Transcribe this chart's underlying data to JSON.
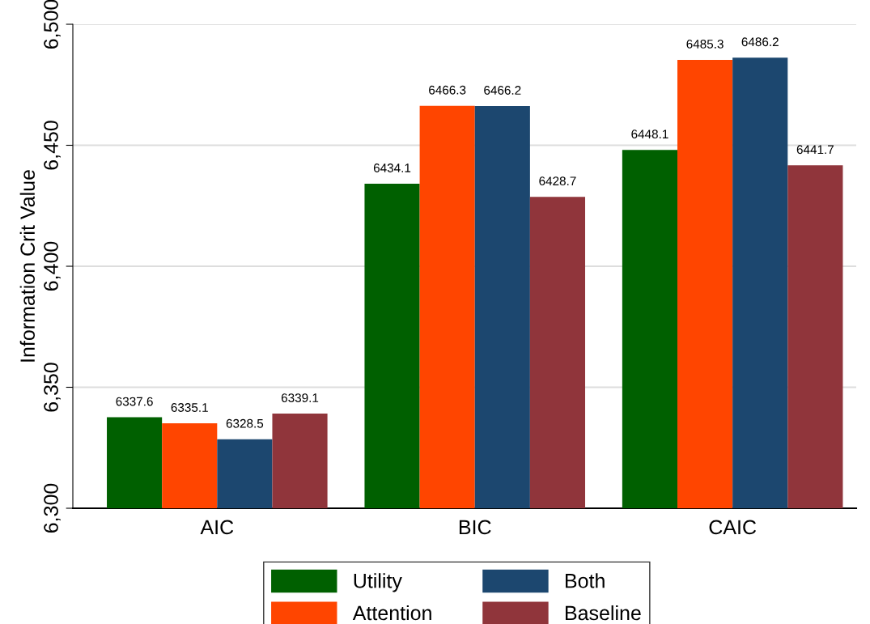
{
  "chart_data": {
    "type": "bar",
    "ylabel": "Information Crit Value",
    "categories": [
      "AIC",
      "BIC",
      "CAIC"
    ],
    "series": [
      {
        "name": "Utility",
        "color": "#006000",
        "values": [
          6337.6,
          6434.1,
          6448.1
        ]
      },
      {
        "name": "Attention",
        "color": "#ff4500",
        "values": [
          6335.1,
          6466.3,
          6485.3
        ]
      },
      {
        "name": "Both",
        "color": "#1c476f",
        "values": [
          6328.5,
          6466.2,
          6486.2
        ]
      },
      {
        "name": "Baseline",
        "color": "#90353b",
        "values": [
          6339.1,
          6428.7,
          6441.7
        ]
      }
    ],
    "ylim": [
      6300,
      6500
    ],
    "yticks": [
      {
        "value": 6300,
        "label": "6,300"
      },
      {
        "value": 6350,
        "label": "6,350"
      },
      {
        "value": 6400,
        "label": "6,400"
      },
      {
        "value": 6450,
        "label": "6,450"
      },
      {
        "value": 6500,
        "label": "6,500"
      }
    ],
    "grid": "y",
    "legend": "bottom",
    "data_labels": true
  }
}
